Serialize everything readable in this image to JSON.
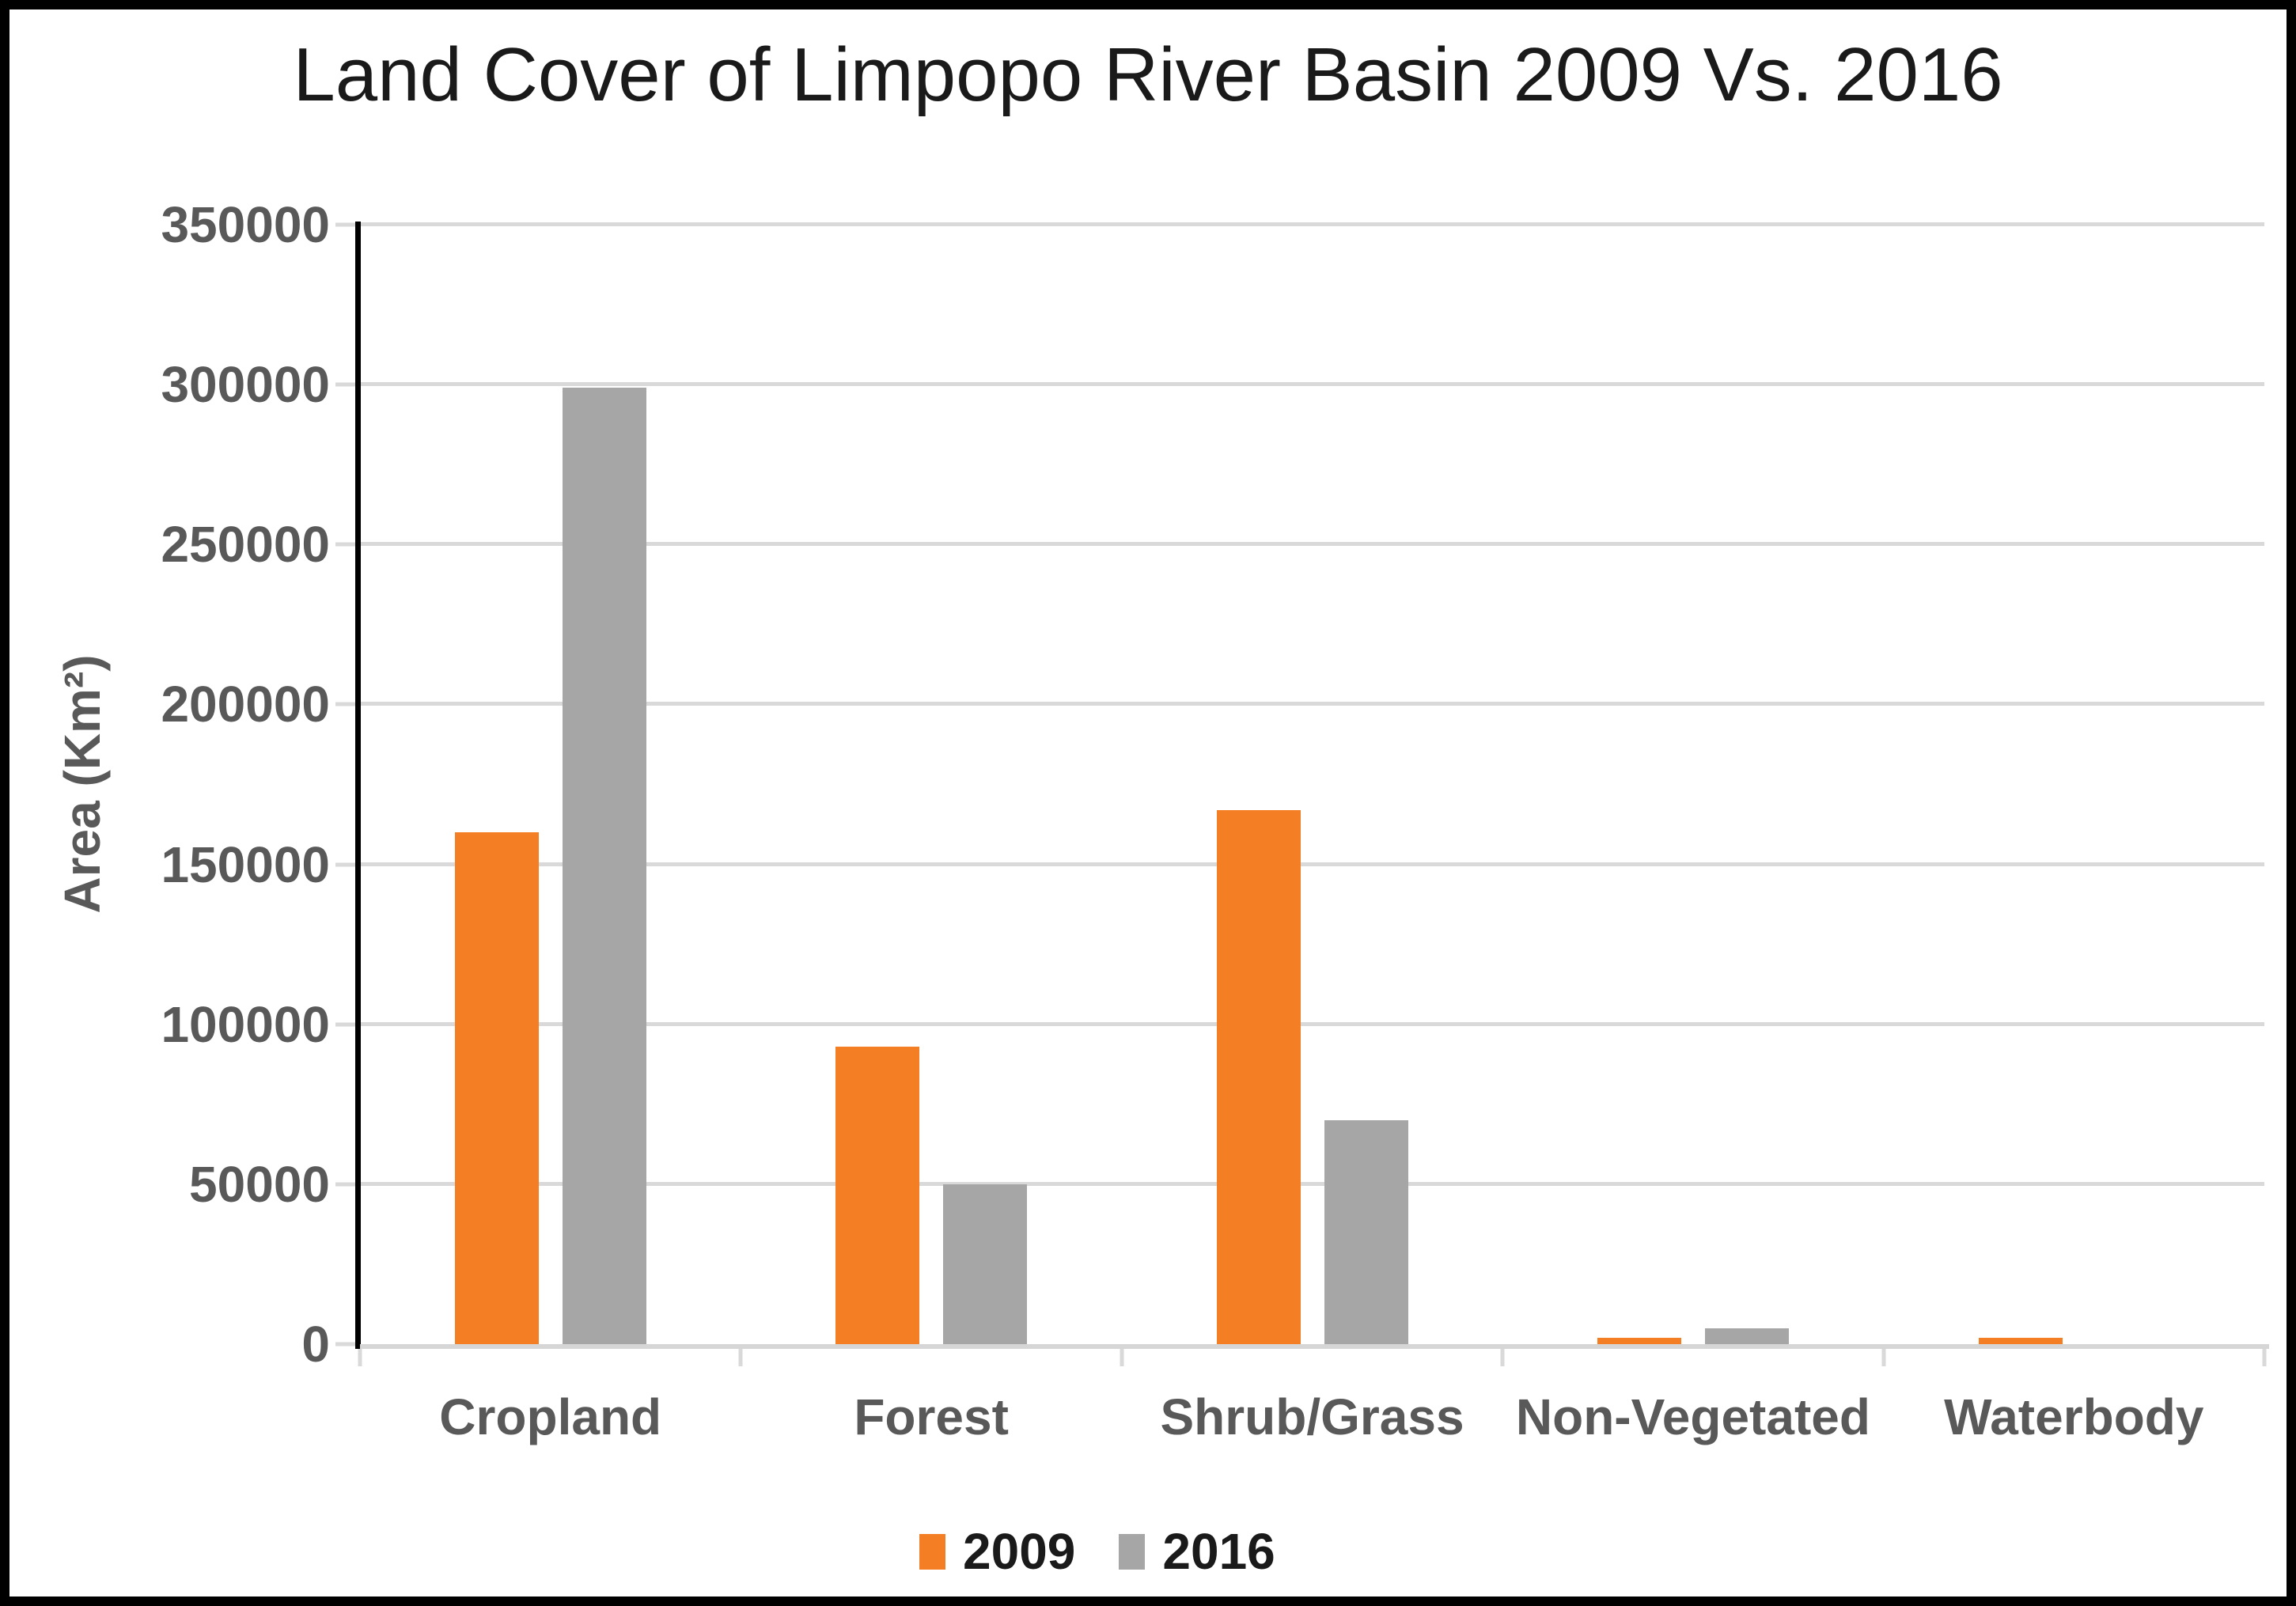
{
  "chart_data": {
    "type": "bar",
    "title": "Land Cover of Limpopo River Basin 2009 Vs. 2016",
    "categories": [
      "Cropland",
      "Forest",
      "Shrub/Grass",
      "Non-Vegetated",
      "Waterbody"
    ],
    "series": [
      {
        "name": "2009",
        "color": "#F47E24",
        "values": [
          160000,
          93000,
          167000,
          2000,
          2000
        ]
      },
      {
        "name": "2016",
        "color": "#A6A6A6",
        "values": [
          299000,
          50000,
          70000,
          5000,
          0
        ]
      }
    ],
    "xlabel": "",
    "ylabel": "Area (Km²)",
    "ylim": [
      0,
      350000
    ],
    "y_tick_interval": 50000,
    "y_tick_labels": [
      "0",
      "50000",
      "100000",
      "150000",
      "200000",
      "250000",
      "300000",
      "350000"
    ],
    "grid": "horizontal",
    "legend_position": "bottom",
    "colors": {
      "series_2009": "#F47E24",
      "series_2016": "#A6A6A6",
      "gridline": "#D9D9D9",
      "axis_text": "#595959",
      "title_text": "#1A1A1A",
      "y_axis_line": "#000000"
    }
  }
}
